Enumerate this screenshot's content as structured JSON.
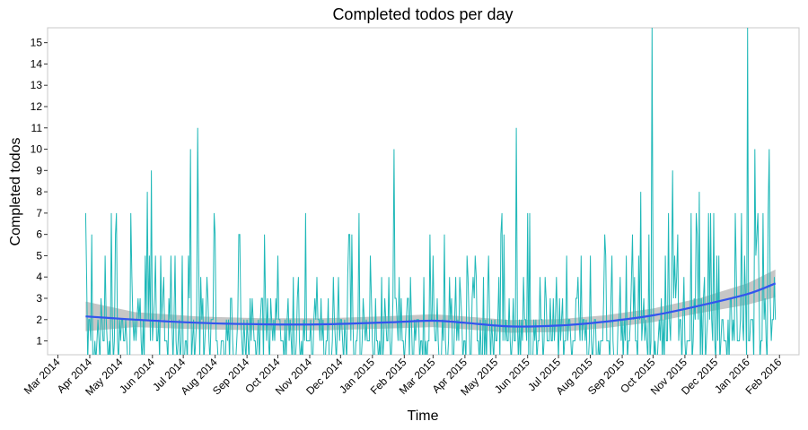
{
  "chart_data": {
    "type": "line",
    "title": "Completed todos per day",
    "xlabel": "Time",
    "ylabel": "Completed todos",
    "x_ticks": [
      "Mar 2014",
      "Apr 2014",
      "May 2014",
      "Jun 2014",
      "Jul 2014",
      "Aug 2014",
      "Sep 2014",
      "Oct 2014",
      "Nov 2014",
      "Dec 2014",
      "Jan 2015",
      "Feb 2015",
      "Mar 2015",
      "Apr 2015",
      "May 2015",
      "Jun 2015",
      "Jul 2015",
      "Aug 2015",
      "Sep 2015",
      "Oct 2015",
      "Nov 2015",
      "Dec 2015",
      "Jan 2016",
      "Feb 2016"
    ],
    "y_ticks": [
      1,
      2,
      3,
      4,
      5,
      6,
      7,
      8,
      9,
      10,
      11,
      12,
      13,
      14,
      15
    ],
    "xlim": [
      "2014-02-19",
      "2016-02-20"
    ],
    "ylim": [
      0.35,
      15.7
    ],
    "grid": false,
    "legend": "none",
    "colors": {
      "daily": "#1fb8b8",
      "trend": "#3355ee",
      "band": "#b3b3b3",
      "frame": "#c8c8c8"
    },
    "series": [
      {
        "key": "daily",
        "start_date": "2014-03-28",
        "end_date": "2016-01-28",
        "peaks": [
          {
            "date": "2014-03-28",
            "value": 7
          },
          {
            "date": "2014-04-03",
            "value": 6
          },
          {
            "date": "2014-04-22",
            "value": 7
          },
          {
            "date": "2014-05-27",
            "value": 8
          },
          {
            "date": "2014-05-31",
            "value": 9
          },
          {
            "date": "2014-07-08",
            "value": 10
          },
          {
            "date": "2014-07-15",
            "value": 11
          },
          {
            "date": "2014-08-01",
            "value": 6
          },
          {
            "date": "2014-09-18",
            "value": 6
          },
          {
            "date": "2014-10-28",
            "value": 7
          },
          {
            "date": "2014-12-12",
            "value": 6
          },
          {
            "date": "2015-01-22",
            "value": 10
          },
          {
            "date": "2015-02-26",
            "value": 6
          },
          {
            "date": "2015-05-09",
            "value": 6
          },
          {
            "date": "2015-05-21",
            "value": 11
          },
          {
            "date": "2015-06-03",
            "value": 7
          },
          {
            "date": "2015-09-19",
            "value": 8
          },
          {
            "date": "2015-09-30",
            "value": 15.7
          },
          {
            "date": "2015-10-20",
            "value": 9
          },
          {
            "date": "2015-11-15",
            "value": 8
          },
          {
            "date": "2016-01-01",
            "value": 15.7
          },
          {
            "date": "2016-01-08",
            "value": 10
          },
          {
            "date": "2016-01-22",
            "value": 10
          }
        ]
      },
      {
        "key": "trend",
        "points": [
          {
            "date": "2014-03-28",
            "value": 2.15
          },
          {
            "date": "2014-05-15",
            "value": 2.0
          },
          {
            "date": "2014-07-15",
            "value": 1.85
          },
          {
            "date": "2014-09-15",
            "value": 1.78
          },
          {
            "date": "2014-11-15",
            "value": 1.78
          },
          {
            "date": "2015-01-15",
            "value": 1.87
          },
          {
            "date": "2015-03-01",
            "value": 1.95
          },
          {
            "date": "2015-04-01",
            "value": 1.85
          },
          {
            "date": "2015-05-15",
            "value": 1.68
          },
          {
            "date": "2015-07-01",
            "value": 1.72
          },
          {
            "date": "2015-08-15",
            "value": 1.9
          },
          {
            "date": "2015-10-01",
            "value": 2.2
          },
          {
            "date": "2015-11-15",
            "value": 2.65
          },
          {
            "date": "2016-01-01",
            "value": 3.2
          },
          {
            "date": "2016-01-28",
            "value": 3.7
          }
        ],
        "band": [
          {
            "date": "2014-03-28",
            "lo": 1.45,
            "hi": 2.85
          },
          {
            "date": "2014-05-15",
            "lo": 1.65,
            "hi": 2.35
          },
          {
            "date": "2014-07-15",
            "lo": 1.55,
            "hi": 2.15
          },
          {
            "date": "2014-09-15",
            "lo": 1.5,
            "hi": 2.06
          },
          {
            "date": "2014-11-15",
            "lo": 1.5,
            "hi": 2.06
          },
          {
            "date": "2015-01-15",
            "lo": 1.58,
            "hi": 2.16
          },
          {
            "date": "2015-03-01",
            "lo": 1.65,
            "hi": 2.25
          },
          {
            "date": "2015-04-01",
            "lo": 1.55,
            "hi": 2.15
          },
          {
            "date": "2015-05-15",
            "lo": 1.38,
            "hi": 1.98
          },
          {
            "date": "2015-07-01",
            "lo": 1.42,
            "hi": 2.02
          },
          {
            "date": "2015-08-15",
            "lo": 1.6,
            "hi": 2.2
          },
          {
            "date": "2015-10-01",
            "lo": 1.88,
            "hi": 2.52
          },
          {
            "date": "2015-11-15",
            "lo": 2.3,
            "hi": 3.0
          },
          {
            "date": "2016-01-01",
            "lo": 2.7,
            "hi": 3.7
          },
          {
            "date": "2016-01-28",
            "lo": 3.05,
            "hi": 4.35
          }
        ]
      }
    ]
  }
}
